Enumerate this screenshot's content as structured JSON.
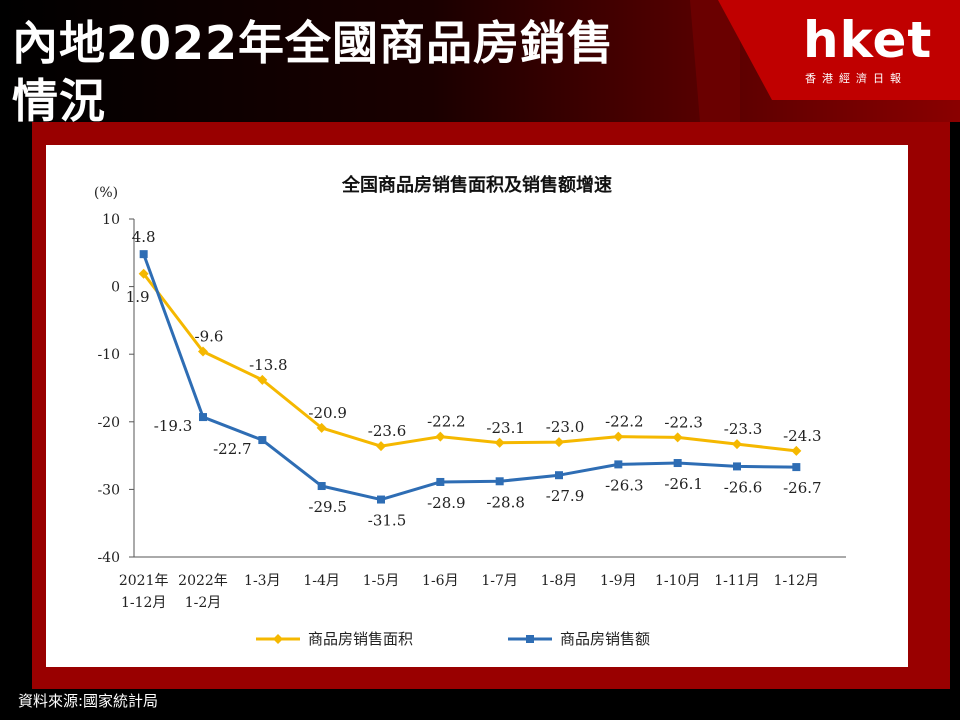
{
  "headline": {
    "line1": "內地2022年全國商品房銷售",
    "line2": "情況"
  },
  "logo": {
    "name": "hket",
    "sub": "香港經濟日報"
  },
  "source_text": "資料來源:國家統計局",
  "colors": {
    "area_series": "#F5B800",
    "sales_series": "#2E6DB4",
    "frame": "#990000"
  },
  "chart_data": {
    "type": "line",
    "title": "全国商品房销售面积及销售额增速",
    "yunit": "(%)",
    "ylim": [
      -40,
      10
    ],
    "yticks": [
      10,
      0,
      -10,
      -20,
      -30,
      -40
    ],
    "categories": [
      [
        "2021年",
        "1-12月"
      ],
      [
        "2022年",
        "1-2月"
      ],
      [
        "1-3月"
      ],
      [
        "1-4月"
      ],
      [
        "1-5月"
      ],
      [
        "1-6月"
      ],
      [
        "1-7月"
      ],
      [
        "1-8月"
      ],
      [
        "1-9月"
      ],
      [
        "1-10月"
      ],
      [
        "1-11月"
      ],
      [
        "1-12月"
      ]
    ],
    "series": [
      {
        "name": "商品房销售面积",
        "values": [
          1.9,
          -9.6,
          -13.8,
          -20.9,
          -23.6,
          -22.2,
          -23.1,
          -23.0,
          -22.2,
          -22.3,
          -23.3,
          -24.3
        ],
        "labels": [
          "1.9",
          "-9.6",
          "-13.8",
          "-20.9",
          "-23.6",
          "-22.2",
          "-23.1",
          "-23.0",
          "-22.2",
          "-22.3",
          "-23.3",
          "-24.3"
        ]
      },
      {
        "name": "商品房销售额",
        "values": [
          4.8,
          -19.3,
          -22.7,
          -29.5,
          -31.5,
          -28.9,
          -28.8,
          -27.9,
          -26.3,
          -26.1,
          -26.6,
          -26.7
        ],
        "labels": [
          "4.8",
          "-19.3",
          "-22.7",
          "-29.5",
          "-31.5",
          "-28.9",
          "-28.8",
          "-27.9",
          "-26.3",
          "-26.1",
          "-26.6",
          "-26.7"
        ]
      }
    ],
    "legend_position": "bottom"
  }
}
